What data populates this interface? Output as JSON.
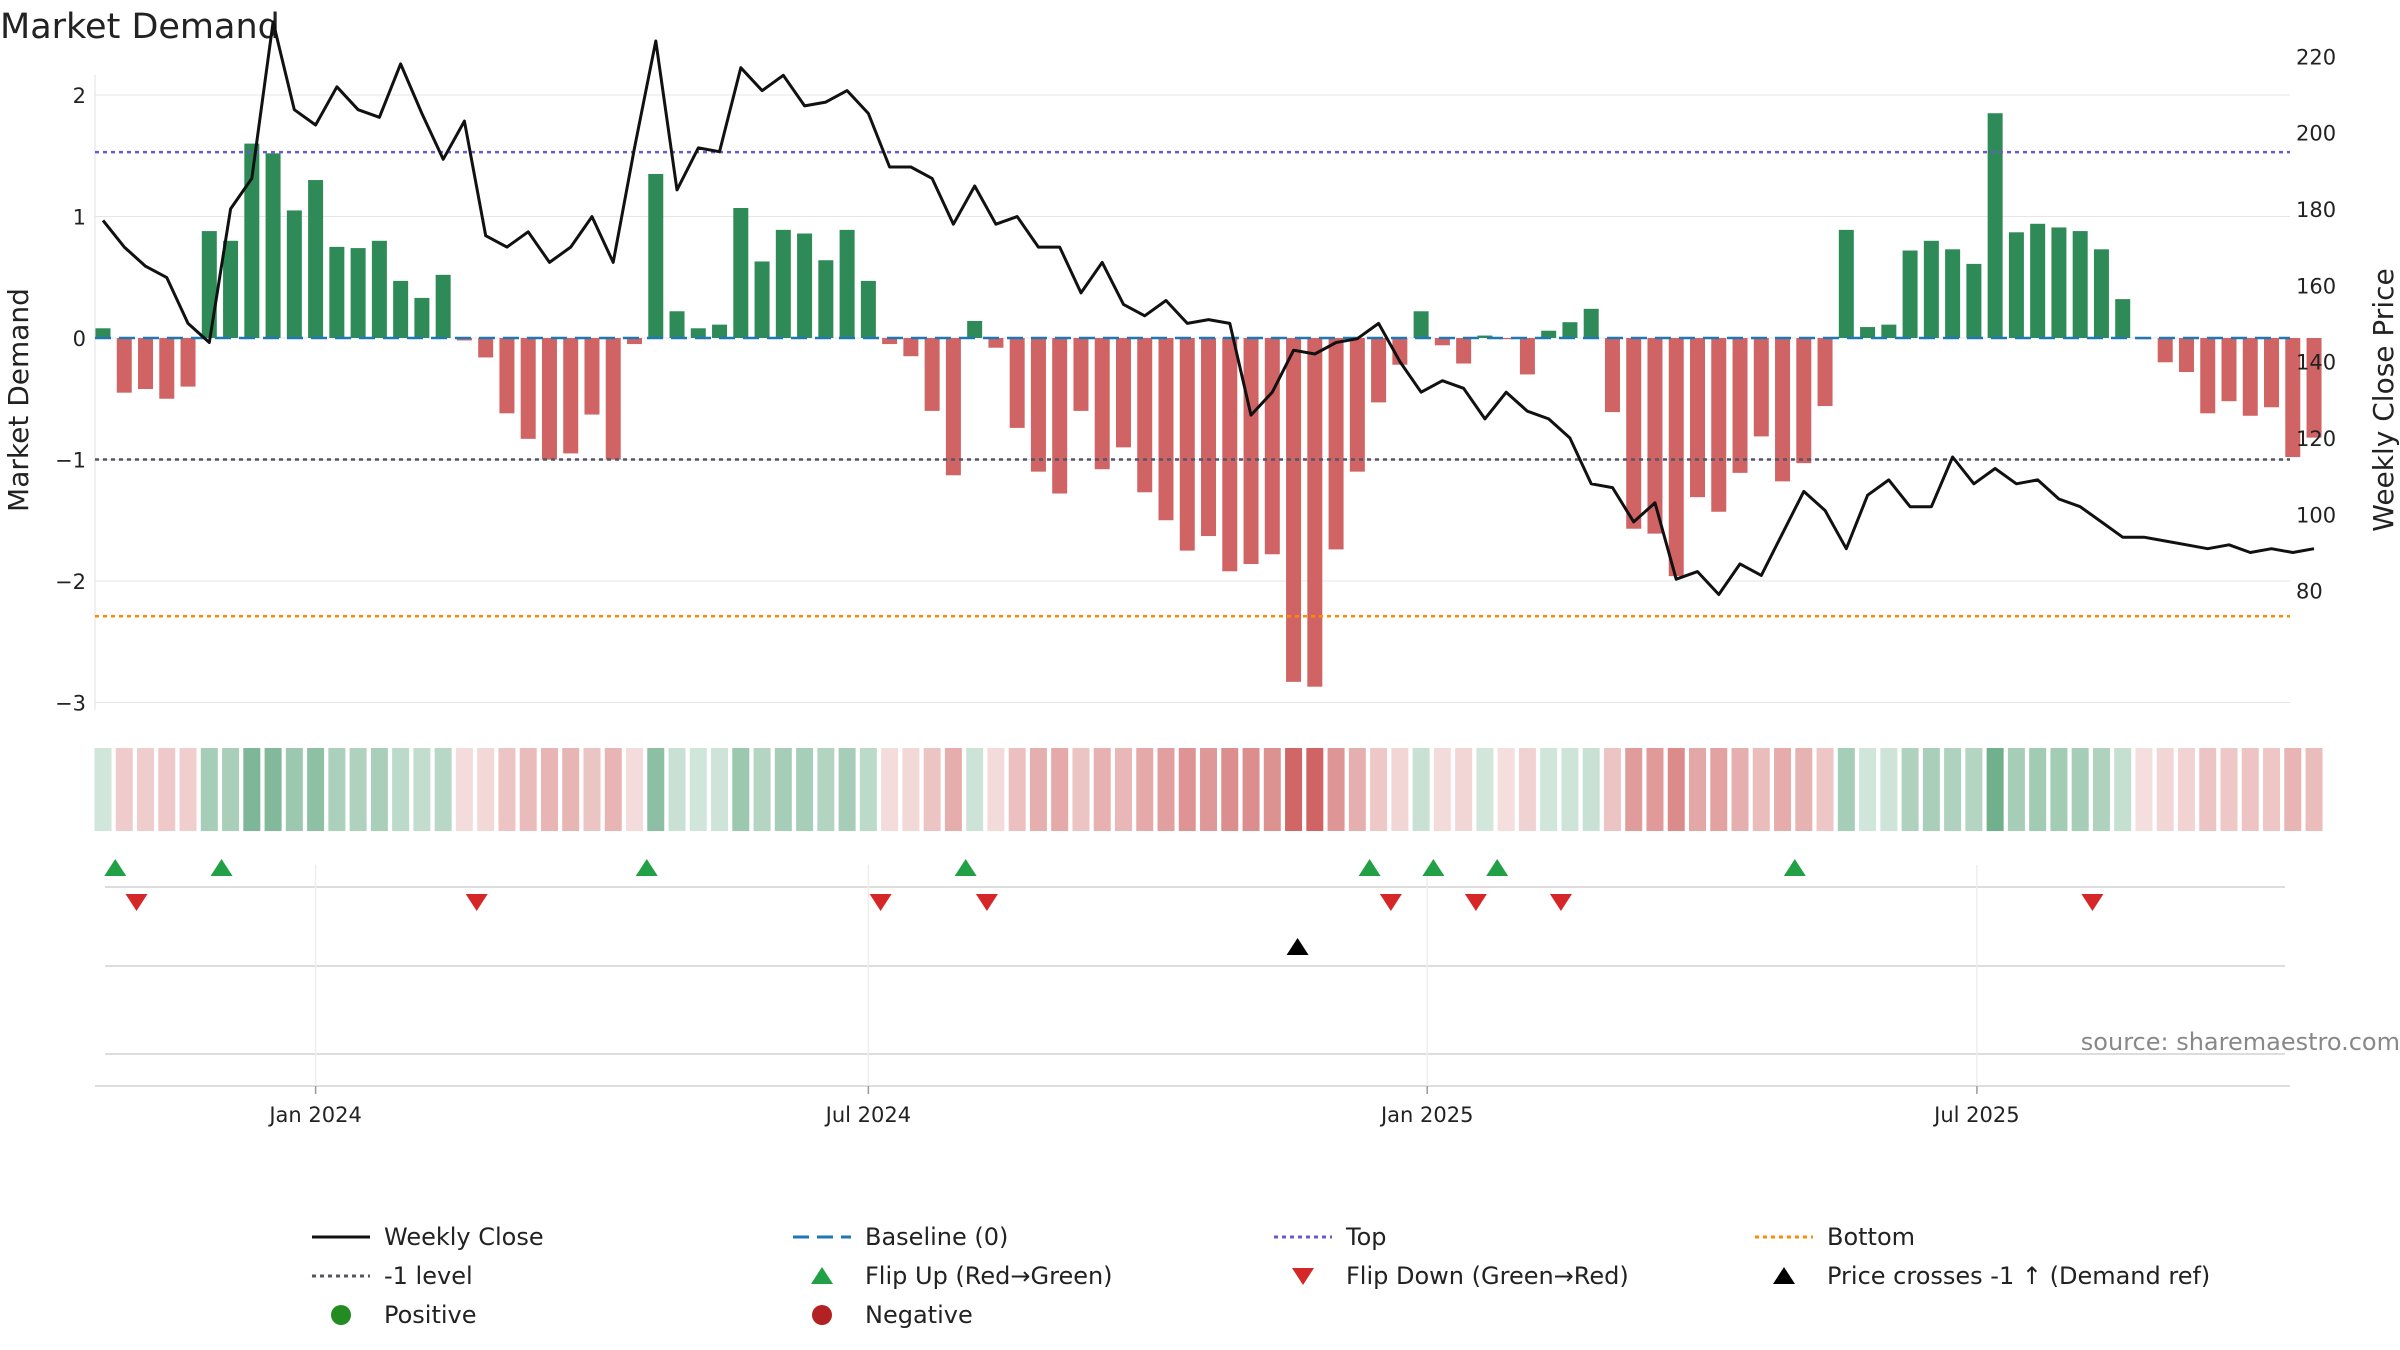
{
  "title": "Market Demand",
  "source": "source: sharemaestro.com",
  "colors": {
    "positive": "#2e8b57",
    "negative": "#cd5c5c",
    "price": "#111111",
    "baseline": "#1f77b4",
    "top": "#6a5acd",
    "bottom": "#ff8c00",
    "minus1": "#555566",
    "flip_up": "#22a045",
    "flip_down": "#d62728",
    "cross": "#000000"
  },
  "chart_data": {
    "type": "bar",
    "title": "Market Demand",
    "ylabel": "Market Demand",
    "y2label": "Weekly Close Price",
    "ylim": [
      -3.2,
      2.1
    ],
    "y2lim": [
      67,
      236
    ],
    "y_ticks": [
      2,
      1,
      0,
      -1,
      -2,
      -3
    ],
    "y_tick_labels": [
      "2",
      "1",
      "0",
      "−1",
      "−2",
      "−3"
    ],
    "y2_ticks": [
      220,
      200,
      180,
      160,
      140,
      120,
      100,
      80
    ],
    "x_start": "2023-10-23",
    "x_ticks": [
      "2024-01-01",
      "2024-07-01",
      "2025-01-01",
      "2025-07-01"
    ],
    "x_tick_labels": [
      "Jan 2024",
      "Jul 2024",
      "Jan 2025",
      "Jul 2025"
    ],
    "levels": {
      "top": 1.53,
      "bottom": -2.29,
      "minus1": -1.0,
      "baseline": 0
    },
    "series": [
      {
        "name": "Market Demand",
        "type": "bar",
        "values": [
          0.08,
          -0.45,
          -0.42,
          -0.5,
          -0.4,
          0.88,
          0.8,
          1.6,
          1.52,
          1.05,
          1.3,
          0.75,
          0.74,
          0.8,
          0.47,
          0.33,
          0.52,
          -0.02,
          -0.16,
          -0.62,
          -0.83,
          -1.0,
          -0.95,
          -0.63,
          -1.0,
          -0.05,
          1.35,
          0.22,
          0.08,
          0.11,
          1.07,
          0.63,
          0.89,
          0.86,
          0.64,
          0.89,
          0.47,
          -0.05,
          -0.15,
          -0.6,
          -1.13,
          0.14,
          -0.08,
          -0.74,
          -1.1,
          -1.28,
          -0.6,
          -1.08,
          -0.9,
          -1.27,
          -1.5,
          -1.75,
          -1.63,
          -1.92,
          -1.86,
          -1.78,
          -2.83,
          -2.87,
          -1.74,
          -1.1,
          -0.53,
          -0.22,
          0.22,
          -0.06,
          -0.21,
          0.02,
          -0.01,
          -0.3,
          0.06,
          0.13,
          0.24,
          -0.61,
          -1.57,
          -1.61,
          -1.96,
          -1.31,
          -1.43,
          -1.11,
          -0.81,
          -1.18,
          -1.03,
          -0.56,
          0.89,
          0.09,
          0.11,
          0.72,
          0.8,
          0.73,
          0.61,
          1.85,
          0.87,
          0.94,
          0.91,
          0.88,
          0.73,
          0.32,
          -0.01,
          -0.2,
          -0.28,
          -0.62,
          -0.52,
          -0.64,
          -0.57,
          -0.98,
          -0.82
        ]
      },
      {
        "name": "Weekly Close",
        "type": "line",
        "values": [
          177,
          170,
          165,
          162,
          150,
          145,
          180,
          188,
          229,
          206,
          202,
          212,
          206,
          204,
          218,
          205,
          193,
          203,
          173,
          170,
          174,
          166,
          170,
          178,
          166,
          196,
          224,
          185,
          196,
          195,
          217,
          211,
          215,
          207,
          208,
          211,
          205,
          191,
          191,
          188,
          176,
          186,
          176,
          178,
          170,
          170,
          158,
          166,
          155,
          152,
          156,
          150,
          151,
          150,
          126,
          132,
          143,
          142,
          145,
          146,
          150,
          140,
          132,
          135,
          133,
          125,
          132,
          127,
          125,
          120,
          108,
          107,
          98,
          103,
          83,
          85,
          79,
          87,
          84,
          95,
          106,
          101,
          91,
          105,
          109,
          102,
          102,
          115,
          108,
          112,
          108,
          109,
          104,
          102,
          98,
          94,
          94,
          93,
          92,
          91,
          92,
          90,
          91,
          90,
          91
        ]
      }
    ],
    "flip_up_weeks": [
      1,
      6,
      26,
      41,
      60,
      63,
      66,
      80
    ],
    "flip_down_weeks": [
      2,
      18,
      37,
      42,
      61,
      65,
      69,
      94
    ],
    "cross_weeks": [
      56
    ]
  },
  "legend": {
    "items": [
      {
        "label": "Weekly Close",
        "marker": "line",
        "color": "#111111",
        "dash": ""
      },
      {
        "label": "Baseline (0)",
        "marker": "line",
        "color": "#1f77b4",
        "dash": "16 8"
      },
      {
        "label": "Top",
        "marker": "line",
        "color": "#6a5acd",
        "dash": "4 4"
      },
      {
        "label": "Bottom",
        "marker": "line",
        "color": "#ff8c00",
        "dash": "4 4"
      },
      {
        "label": "-1 level",
        "marker": "line",
        "color": "#555566",
        "dash": "4 4"
      },
      {
        "label": "Flip Up (Red→Green)",
        "marker": "tri-up",
        "color": "#22a045",
        "dash": ""
      },
      {
        "label": "Flip Down (Green→Red)",
        "marker": "tri-down",
        "color": "#d62728",
        "dash": ""
      },
      {
        "label": "Price crosses -1 ↑ (Demand ref)",
        "marker": "tri-up",
        "color": "#000000",
        "dash": ""
      },
      {
        "label": "Positive",
        "marker": "dot",
        "color": "#228b22",
        "dash": ""
      },
      {
        "label": "Negative",
        "marker": "dot",
        "color": "#b22222",
        "dash": ""
      }
    ]
  }
}
